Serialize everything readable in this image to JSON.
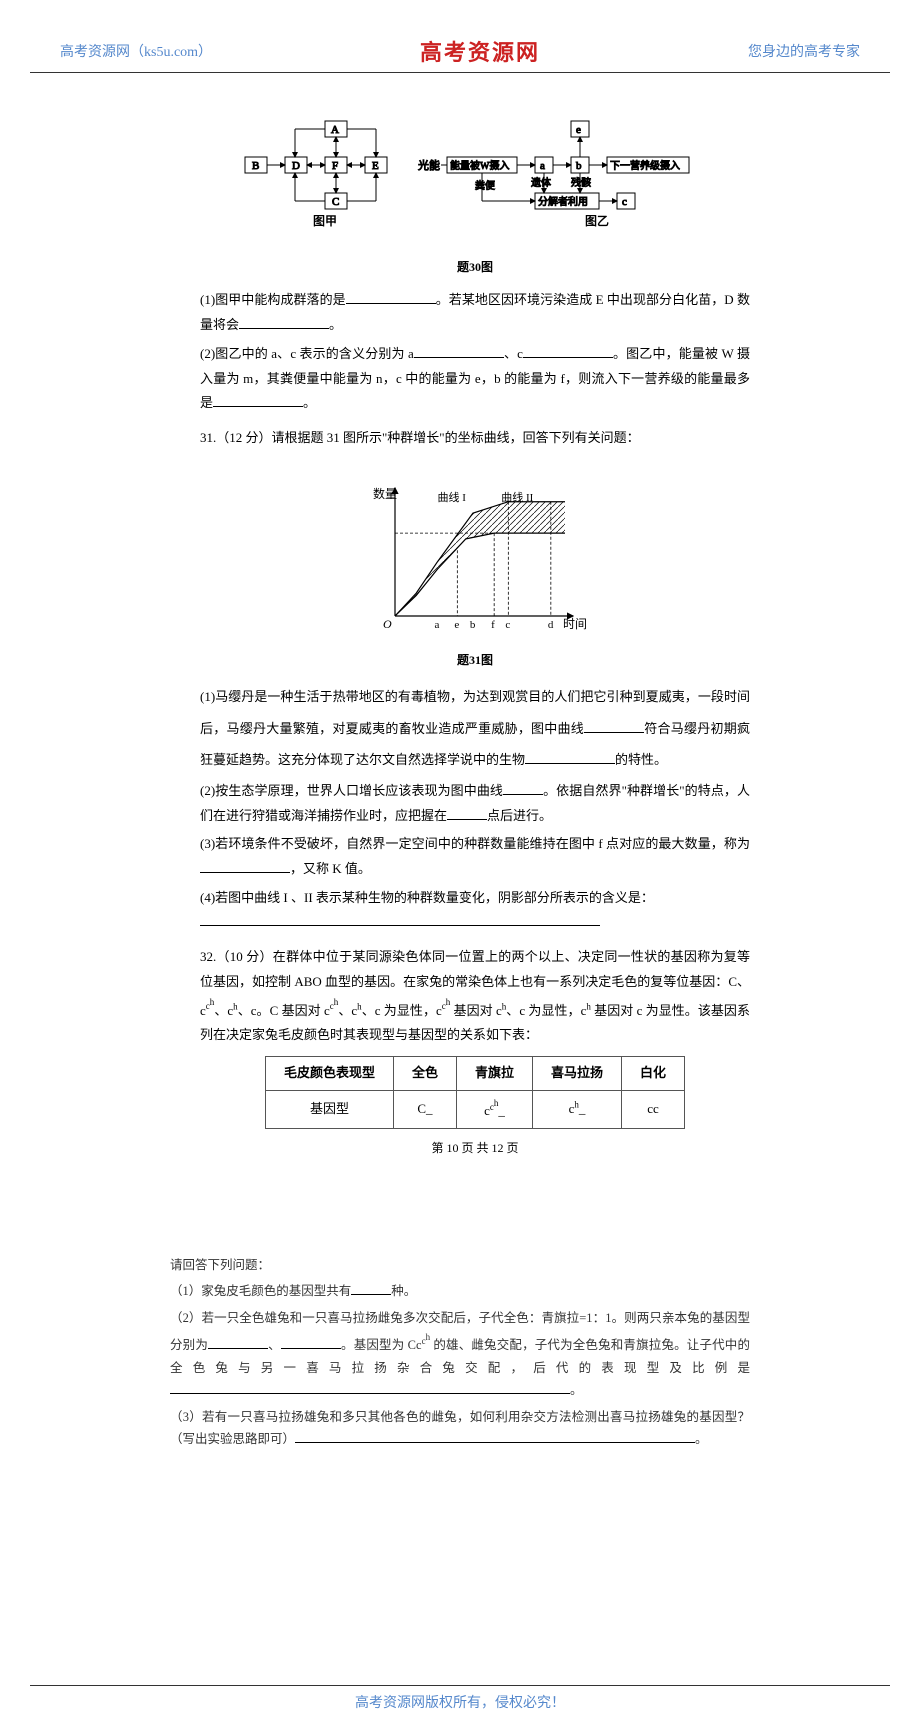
{
  "header": {
    "left": "高考资源网（ks5u.com）",
    "center": "高考资源网",
    "right": "您身边的高考专家"
  },
  "diagram30": {
    "caption": "题30图",
    "left_label": "图甲",
    "right_label": "图乙",
    "nodes_left": {
      "A": "A",
      "B": "B",
      "C": "C",
      "D": "D",
      "E": "E",
      "F": "F"
    },
    "nodes_right": {
      "a": "a",
      "b": "b",
      "c": "c",
      "e": "e"
    },
    "labels": {
      "light": "光能",
      "energy_in": "能量被W摄入",
      "next_level": "下一营养级摄入",
      "feces": "粪便",
      "body": "遗体",
      "residue": "残骸",
      "decomposer": "分解者利用"
    }
  },
  "q30": {
    "p1_a": "(1)图甲中能构成群落的是",
    "p1_b": "。若某地区因环境污染造成 E 中出现部分白化苗，D 数量将会",
    "p1_c": "。",
    "p2_a": "(2)图乙中的 a、c 表示的含义分别为 a",
    "p2_b": "、c",
    "p2_c": "。图乙中，能量被 W 摄入量为 m，其粪便量中能量为 n，c 中的能量为 e，b 的能量为 f，则流入下一营养级的能量最多是",
    "p2_d": "。"
  },
  "q31": {
    "heading": "31.（12 分）请根据题 31 图所示\"种群增长\"的坐标曲线，回答下列有关问题：",
    "chart": {
      "type": "line",
      "y_label": "数量",
      "x_label": "时间",
      "x_ticks": [
        "a",
        "e",
        "b",
        "f",
        "c",
        "d"
      ],
      "curve1_label": "曲线 I",
      "curve2_label": "曲线 II",
      "curve1_points": [
        [
          0,
          0
        ],
        [
          15,
          40
        ],
        [
          30,
          95
        ],
        [
          55,
          180
        ],
        [
          80,
          200
        ],
        [
          120,
          200
        ]
      ],
      "curve2_points": [
        [
          0,
          0
        ],
        [
          15,
          36
        ],
        [
          30,
          82
        ],
        [
          50,
          135
        ],
        [
          70,
          145
        ],
        [
          90,
          145
        ],
        [
          120,
          145
        ]
      ],
      "hatch_between": true,
      "colors": {
        "axis": "#000",
        "curve": "#000",
        "hatch": "#000",
        "bg": "#ffffff"
      },
      "line_width": 1.2,
      "caption": "题31图"
    },
    "p1_a": "(1)马缨丹是一种生活于热带地区的有毒植物，为达到观赏目的人们把它引种到夏威夷，一段时间后，马缨丹大量繁殖，对夏威夷的畜牧业造成严重威胁，图中曲线",
    "p1_b": "符合马缨丹初期疯狂蔓延趋势。这充分体现了达尔文自然选择学说中的生物",
    "p1_c": "的特性。",
    "p2_a": "(2)按生态学原理，世界人口增长应该表现为图中曲线",
    "p2_b": "。依据自然界\"种群增长\"的特点，人们在进行狩猎或海洋捕捞作业时，应把握在",
    "p2_c": "点后进行。",
    "p3_a": "(3)若环境条件不受破坏，自然界一定空间中的种群数量能维持在图中 f 点对应的最大数量，称为",
    "p3_b": "，又称 K 值。",
    "p4_a": "(4)若图中曲线 I 、II 表示某种生物的种群数量变化，阴影部分所表示的含义是：",
    "p4_b": ""
  },
  "q32": {
    "heading": "32.（10 分）在群体中位于某同源染色体同一位置上的两个以上、决定同一性状的基因称为复等位基因，如控制 ABO 血型的基因。在家兔的常染色体上也有一系列决定毛色的复等位基因：C、cch、ch、c。C 基因对 cch、ch、c 为显性，cch 基因对 ch、c 为显性，ch 基因对 c 为显性。该基因系列在决定家兔毛皮颜色时其表现型与基因型的关系如下表：",
    "table": {
      "columns": [
        "毛皮颜色表现型",
        "全色",
        "青旗拉",
        "喜马拉扬",
        "白化"
      ],
      "row_label": "基因型",
      "row": [
        "C_",
        "cch_",
        "ch_",
        "cc"
      ]
    }
  },
  "page_num": "第 10 页 共 12 页",
  "page2": {
    "intro": "请回答下列问题：",
    "p1": "（1）家兔皮毛颜色的基因型共有",
    "p1_end": "种。",
    "p2_a": "（2）若一只全色雄兔和一只喜马拉扬雌兔多次交配后，子代全色：青旗拉=1：1。则两只亲本兔的基因型分别为",
    "p2_b": "、",
    "p2_c": "。基因型为 Ccch 的雄、雌兔交配，子代为全色兔和青旗拉兔。让子代中的全色兔与另一喜马拉扬杂合兔交配，后代的表现型及比例是",
    "p2_d": "。",
    "p3_a": "（3）若有一只喜马拉扬雄兔和多只其他各色的雌兔，如何利用杂交方法检测出喜马拉扬雄兔的基因型？（写出实验思路即可）",
    "p3_b": "。"
  },
  "footer": "高考资源网版权所有，侵权必究！"
}
